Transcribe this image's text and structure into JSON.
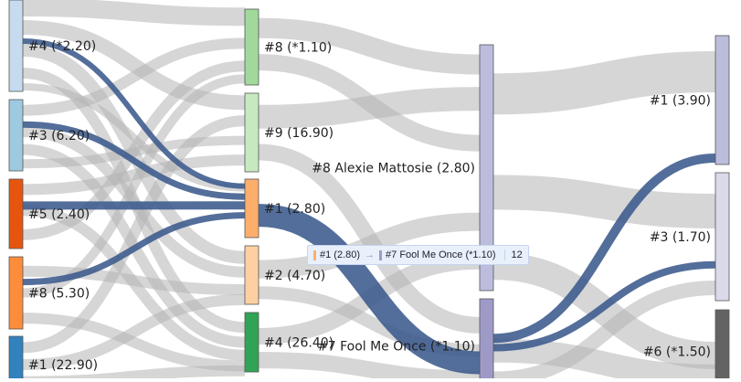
{
  "colors": {
    "link": "#b4b4b4",
    "highlight": "#3b5a8c"
  },
  "columns": [
    {
      "nodes": [
        {
          "id": "c0n0",
          "label": "#4 (*2.20)",
          "color": "#c6dbef"
        },
        {
          "id": "c0n1",
          "label": "#3 (6.20)",
          "color": "#9ecae1"
        },
        {
          "id": "c0n2",
          "label": "#5 (2.40)",
          "color": "#e6550d"
        },
        {
          "id": "c0n3",
          "label": "#8 (5.30)",
          "color": "#fd8d3c"
        },
        {
          "id": "c0n4",
          "label": "#1 (22.90)",
          "color": "#3182bd"
        }
      ]
    },
    {
      "nodes": [
        {
          "id": "c1n0",
          "label": "#8 (*1.10)",
          "color": "#a1d99b"
        },
        {
          "id": "c1n1",
          "label": "#9 (16.90)",
          "color": "#c7e9c0"
        },
        {
          "id": "c1n2",
          "label": "#1 (2.80)",
          "color": "#fdae6b"
        },
        {
          "id": "c1n3",
          "label": "#2 (4.70)",
          "color": "#fdd0a2"
        },
        {
          "id": "c1n4",
          "label": "#4 (26.40)",
          "color": "#31a354"
        }
      ]
    },
    {
      "nodes": [
        {
          "id": "c2n0",
          "label": "#8 Alexie Mattosie (2.80)",
          "color": "#bcbddc"
        },
        {
          "id": "c2n1",
          "label": "#7 Fool Me Once (*1.10)",
          "color": "#9e9ac8"
        }
      ]
    },
    {
      "nodes": [
        {
          "id": "c3n0",
          "label": "#1 (3.90)",
          "color": "#bcbddc"
        },
        {
          "id": "c3n1",
          "label": "#3 (1.70)",
          "color": "#dadaeb"
        },
        {
          "id": "c3n2",
          "label": "#6 (*1.50)",
          "color": "#636363"
        }
      ]
    }
  ],
  "tooltip": {
    "source": "#1 (2.80)",
    "arrow": "→",
    "target": "#7 Fool Me Once (*1.10)",
    "value": "12",
    "source_color": "#fdae6b",
    "target_color": "#9e9ac8"
  }
}
